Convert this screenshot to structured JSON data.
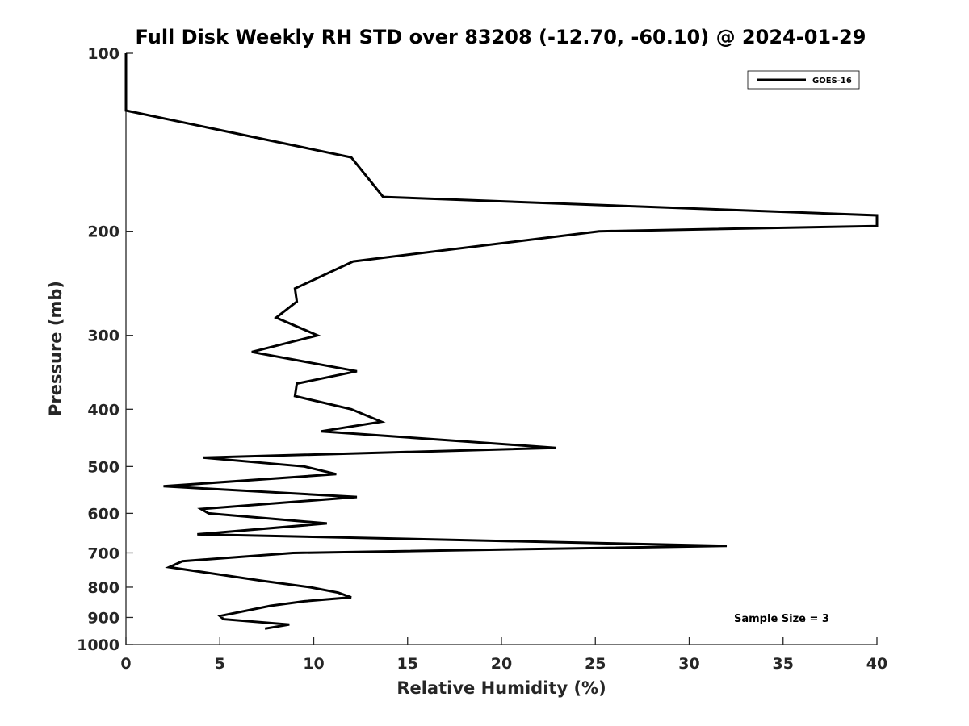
{
  "chart_data": {
    "type": "line",
    "title": "Full Disk Weekly RH STD over 83208 (-12.70, -60.10) @ 2024-01-29",
    "xlabel": "Relative Humidity (%)",
    "ylabel": "Pressure (mb)",
    "xlim": [
      0,
      40
    ],
    "ylim": [
      100,
      1000
    ],
    "y_scale": "log",
    "y_reversed": true,
    "grid": false,
    "legend_position": "top-right",
    "x_ticks": [
      "0",
      "5",
      "10",
      "15",
      "20",
      "25",
      "30",
      "35",
      "40"
    ],
    "y_ticks": [
      "100",
      "200",
      "300",
      "400",
      "500",
      "600",
      "700",
      "800",
      "900",
      "1000"
    ],
    "annotation": "Sample Size = 3",
    "series": [
      {
        "name": "GOES-16",
        "color": "#000000",
        "points": [
          [
            0,
            100
          ],
          [
            0,
            125
          ],
          [
            12.0,
            150
          ],
          [
            13.7,
            175
          ],
          [
            40,
            188
          ],
          [
            40,
            196
          ],
          [
            25.2,
            200
          ],
          [
            12.1,
            225
          ],
          [
            9.0,
            250
          ],
          [
            9.1,
            263
          ],
          [
            8.0,
            280
          ],
          [
            10.2,
            300
          ],
          [
            6.7,
            320
          ],
          [
            12.3,
            345
          ],
          [
            9.1,
            362
          ],
          [
            9.0,
            380
          ],
          [
            12.0,
            400
          ],
          [
            13.6,
            420
          ],
          [
            10.4,
            436
          ],
          [
            22.9,
            465
          ],
          [
            4.1,
            483
          ],
          [
            9.5,
            500
          ],
          [
            11.2,
            515
          ],
          [
            2.0,
            540
          ],
          [
            12.3,
            563
          ],
          [
            4.0,
            590
          ],
          [
            4.4,
            600
          ],
          [
            10.7,
            624
          ],
          [
            3.8,
            651
          ],
          [
            32.0,
            681
          ],
          [
            8.9,
            700
          ],
          [
            3.0,
            723
          ],
          [
            2.3,
            740
          ],
          [
            7.2,
            780
          ],
          [
            9.8,
            800
          ],
          [
            11.3,
            817
          ],
          [
            12.0,
            832
          ],
          [
            9.5,
            845
          ],
          [
            7.7,
            860
          ],
          [
            5.0,
            895
          ],
          [
            5.2,
            906
          ],
          [
            8.7,
            925
          ],
          [
            7.4,
            940
          ]
        ]
      }
    ]
  }
}
